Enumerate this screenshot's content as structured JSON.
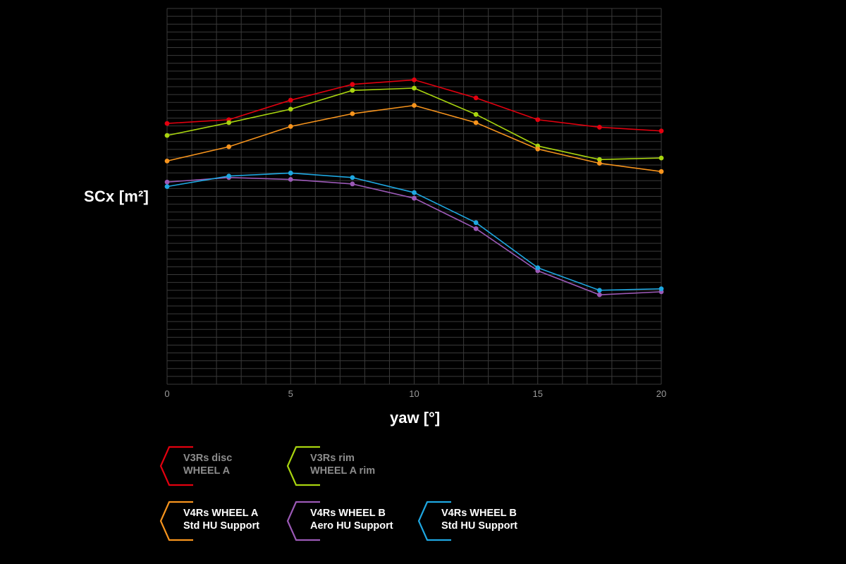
{
  "chart_data": {
    "type": "line",
    "ylabel": "SCx [m²]",
    "xlabel": "yaw [°]",
    "x": [
      0,
      2.5,
      5,
      7.5,
      10,
      12.5,
      15,
      17.5,
      20
    ],
    "x_ticks": [
      "0",
      "5",
      "10",
      "15",
      "20"
    ],
    "xlim": [
      0,
      20
    ],
    "ylim": [
      0,
      1
    ],
    "y_ticks_labeled": false,
    "grid": true,
    "legend_placement": "bottom",
    "series": [
      {
        "name": "V3Rs disc WHEEL A",
        "color": "#e3000f",
        "values": [
          0.694,
          0.704,
          0.756,
          0.798,
          0.81,
          0.762,
          0.704,
          0.684,
          0.674
        ]
      },
      {
        "name": "V3Rs rim WHEEL A rim",
        "color": "#a8d40f",
        "values": [
          0.662,
          0.696,
          0.732,
          0.782,
          0.788,
          0.718,
          0.634,
          0.598,
          0.602
        ]
      },
      {
        "name": "V4Rs WHEEL A Std HU Support",
        "color": "#f7941d",
        "values": [
          0.594,
          0.632,
          0.686,
          0.72,
          0.742,
          0.696,
          0.626,
          0.588,
          0.566
        ]
      },
      {
        "name": "V4Rs WHEEL B Aero HU Support",
        "color": "#9b59b6",
        "values": [
          0.538,
          0.55,
          0.545,
          0.533,
          0.495,
          0.414,
          0.302,
          0.238,
          0.246
        ]
      },
      {
        "name": "V4Rs WHEEL B Std HU Support",
        "color": "#1ea7e1",
        "values": [
          0.526,
          0.554,
          0.562,
          0.55,
          0.51,
          0.43,
          0.31,
          0.25,
          0.254
        ]
      }
    ]
  },
  "legend": [
    {
      "line1": "V3Rs disc",
      "line2": "WHEEL A",
      "color": "#e3000f",
      "text_color": "#8c8c8c"
    },
    {
      "line1": "V3Rs rim",
      "line2": "WHEEL A rim",
      "color": "#a8d40f",
      "text_color": "#8c8c8c"
    },
    {
      "line1": "V4Rs WHEEL A",
      "line2": "Std HU Support",
      "color": "#f7941d",
      "text_color": "#ffffff"
    },
    {
      "line1": "V4Rs WHEEL B",
      "line2": "Aero HU Support",
      "color": "#9b59b6",
      "text_color": "#ffffff"
    },
    {
      "line1": "V4Rs WHEEL B",
      "line2": "Std HU Support",
      "color": "#1ea7e1",
      "text_color": "#ffffff"
    }
  ],
  "colors": {
    "background": "#000000",
    "grid": "#3a3a3a",
    "tick_text": "#9a9a9a"
  }
}
